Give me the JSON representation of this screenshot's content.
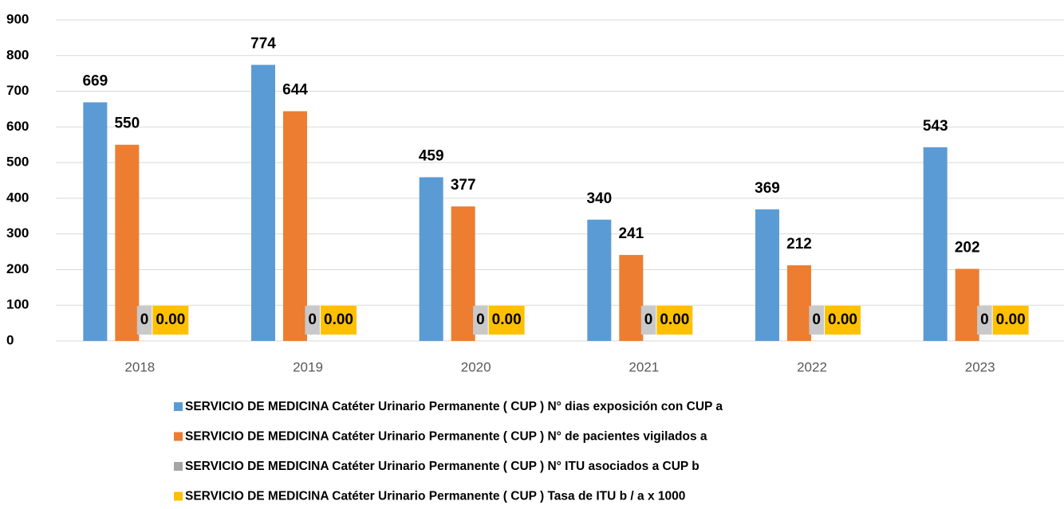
{
  "chart_data": {
    "type": "bar",
    "categories": [
      "2018",
      "2019",
      "2020",
      "2021",
      "2022",
      "2023"
    ],
    "series": [
      {
        "name": "SERVICIO DE MEDICINA Catéter Urinario Permanente ( CUP ) N° dias exposición con CUP a",
        "color": "#5b9bd5",
        "values": [
          669,
          774,
          459,
          340,
          369,
          543
        ]
      },
      {
        "name": "SERVICIO DE MEDICINA Catéter Urinario Permanente ( CUP ) N° de pacientes vigilados a",
        "color": "#ed7d31",
        "values": [
          550,
          644,
          377,
          241,
          212,
          202
        ]
      },
      {
        "name": "SERVICIO DE MEDICINA Catéter Urinario Permanente ( CUP ) N° ITU asociados a CUP b",
        "color": "#a5a5a5",
        "label_background": "#c9c9c9",
        "values": [
          0,
          0,
          0,
          0,
          0,
          0
        ]
      },
      {
        "name": "SERVICIO DE MEDICINA Catéter Urinario Permanente ( CUP ) Tasa de ITU b / a x 1000",
        "color": "#ffc000",
        "label_background": "#ffc000",
        "values": [
          0,
          0,
          0,
          0,
          0,
          0
        ],
        "value_labels": [
          "0.00",
          "0.00",
          "0.00",
          "0.00",
          "0.00",
          "0.00"
        ]
      }
    ],
    "ylim": [
      0,
      900
    ],
    "yticks": [
      0,
      100,
      200,
      300,
      400,
      500,
      600,
      700,
      800,
      900
    ],
    "grid": true,
    "legend": "bottom"
  }
}
